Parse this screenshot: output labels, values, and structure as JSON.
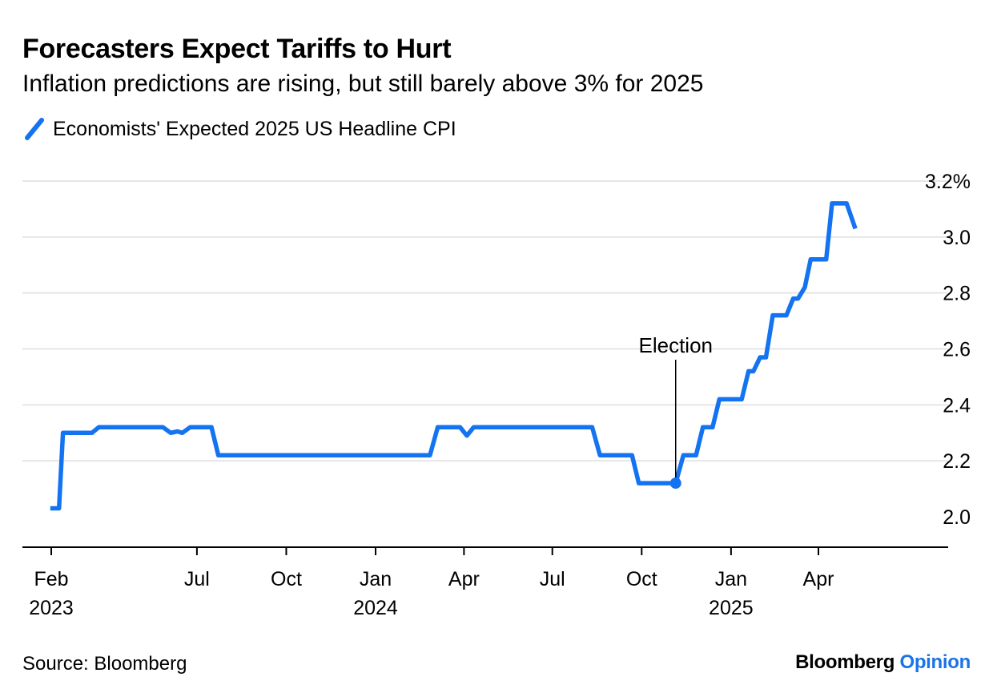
{
  "header": {
    "title": "Forecasters Expect Tariffs to Hurt",
    "subtitle": "Inflation predictions are rising, but still barely above 3% for 2025"
  },
  "footer": {
    "source": "Source: Bloomberg",
    "brand_main": "Bloomberg",
    "brand_accent": "Opinion"
  },
  "colors": {
    "series": "#1473f0",
    "grid": "#e6e6e6",
    "axis": "#000000",
    "brand_accent": "#1a73e8"
  },
  "chart_data": {
    "type": "line",
    "title": "Forecasters Expect Tariffs to Hurt",
    "subtitle": "Inflation predictions are rising, but still barely above 3% for 2025",
    "xlabel": "",
    "ylabel": "",
    "ylim": [
      1.93,
      3.2
    ],
    "xlim": [
      "2023-01-23",
      "2025-07-05"
    ],
    "grid": true,
    "y_axis_side": "right",
    "legend": {
      "placement": "top-left"
    },
    "y_ticks": [
      {
        "value": 2.0,
        "label": "2.0"
      },
      {
        "value": 2.2,
        "label": "2.2"
      },
      {
        "value": 2.4,
        "label": "2.4"
      },
      {
        "value": 2.6,
        "label": "2.6"
      },
      {
        "value": 2.8,
        "label": "2.8"
      },
      {
        "value": 3.0,
        "label": "3.0"
      },
      {
        "value": 3.2,
        "label": "3.2%"
      }
    ],
    "x_ticks": [
      {
        "date": "2023-02-01",
        "label": "Feb",
        "sublabel": "2023"
      },
      {
        "date": "2023-07-01",
        "label": "Jul",
        "sublabel": ""
      },
      {
        "date": "2023-10-01",
        "label": "Oct",
        "sublabel": ""
      },
      {
        "date": "2024-01-01",
        "label": "Jan",
        "sublabel": "2024"
      },
      {
        "date": "2024-04-01",
        "label": "Apr",
        "sublabel": ""
      },
      {
        "date": "2024-07-01",
        "label": "Jul",
        "sublabel": ""
      },
      {
        "date": "2024-10-01",
        "label": "Oct",
        "sublabel": ""
      },
      {
        "date": "2025-01-01",
        "label": "Jan",
        "sublabel": "2025"
      },
      {
        "date": "2025-04-01",
        "label": "Apr",
        "sublabel": ""
      }
    ],
    "series": [
      {
        "name": "Economists' Expected 2025 US Headline CPI",
        "color": "#1473f0",
        "points": [
          [
            "2023-01-31",
            2.03
          ],
          [
            "2023-02-09",
            2.03
          ],
          [
            "2023-02-13",
            2.3
          ],
          [
            "2023-03-15",
            2.3
          ],
          [
            "2023-03-22",
            2.32
          ],
          [
            "2023-05-27",
            2.32
          ],
          [
            "2023-06-04",
            2.3
          ],
          [
            "2023-06-11",
            2.305
          ],
          [
            "2023-06-16",
            2.3
          ],
          [
            "2023-06-24",
            2.32
          ],
          [
            "2023-07-16",
            2.32
          ],
          [
            "2023-07-23",
            2.22
          ],
          [
            "2024-02-26",
            2.22
          ],
          [
            "2024-03-05",
            2.32
          ],
          [
            "2024-03-28",
            2.32
          ],
          [
            "2024-04-04",
            2.29
          ],
          [
            "2024-04-11",
            2.32
          ],
          [
            "2024-08-11",
            2.32
          ],
          [
            "2024-08-19",
            2.22
          ],
          [
            "2024-09-21",
            2.22
          ],
          [
            "2024-09-28",
            2.12
          ],
          [
            "2024-11-05",
            2.12
          ],
          [
            "2024-11-13",
            2.22
          ],
          [
            "2024-11-26",
            2.22
          ],
          [
            "2024-12-03",
            2.32
          ],
          [
            "2024-12-13",
            2.32
          ],
          [
            "2024-12-20",
            2.42
          ],
          [
            "2025-01-12",
            2.42
          ],
          [
            "2025-01-19",
            2.52
          ],
          [
            "2025-01-24",
            2.52
          ],
          [
            "2025-01-31",
            2.57
          ],
          [
            "2025-02-06",
            2.57
          ],
          [
            "2025-02-13",
            2.72
          ],
          [
            "2025-02-27",
            2.72
          ],
          [
            "2025-03-06",
            2.78
          ],
          [
            "2025-03-11",
            2.78
          ],
          [
            "2025-03-18",
            2.82
          ],
          [
            "2025-03-24",
            2.92
          ],
          [
            "2025-04-09",
            2.92
          ],
          [
            "2025-04-15",
            3.12
          ],
          [
            "2025-04-30",
            3.12
          ],
          [
            "2025-05-09",
            3.03
          ]
        ]
      }
    ],
    "annotations": [
      {
        "label": "Election",
        "date": "2024-11-05",
        "value": 2.12
      }
    ]
  }
}
